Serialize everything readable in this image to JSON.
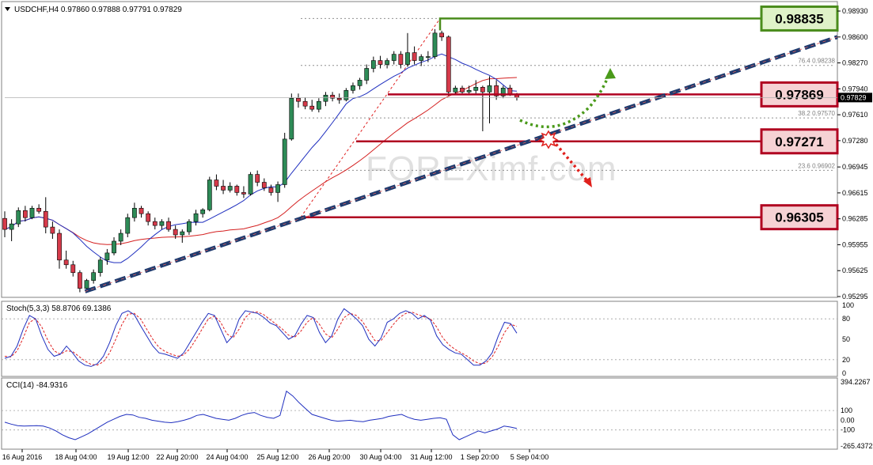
{
  "chart_data": [
    {
      "type": "candlestick",
      "symbol_header": "USDCHF,H4  0.97860 0.97888 0.97791 0.97829",
      "ylim": [
        0.95295,
        0.9893
      ],
      "y_ticks": [
        "0.98930",
        "0.98600",
        "0.98270",
        "0.97940",
        "0.97610",
        "0.97280",
        "0.96945",
        "0.96615",
        "0.96285",
        "0.95955",
        "0.95625",
        "0.95295"
      ],
      "x_ticks": [
        "16 Aug 2016",
        "18 Aug 04:00",
        "19 Aug 12:00",
        "22 Aug 20:00",
        "24 Aug 04:00",
        "25 Aug 12:00",
        "26 Aug 20:00",
        "30 Aug 04:00",
        "31 Aug 12:00",
        "1 Sep 20:00",
        "5 Sep 04:00"
      ],
      "candles": [
        [
          0.9629,
          0.9638,
          0.9605,
          0.9615
        ],
        [
          0.9615,
          0.9628,
          0.96,
          0.9622
        ],
        [
          0.9622,
          0.9643,
          0.9618,
          0.9639
        ],
        [
          0.9639,
          0.9645,
          0.9625,
          0.963
        ],
        [
          0.963,
          0.9645,
          0.9628,
          0.9642
        ],
        [
          0.9642,
          0.9647,
          0.9635,
          0.9638
        ],
        [
          0.9638,
          0.9656,
          0.961,
          0.9618
        ],
        [
          0.9618,
          0.9625,
          0.9603,
          0.961
        ],
        [
          0.961,
          0.9615,
          0.9565,
          0.9576
        ],
        [
          0.9576,
          0.9588,
          0.9565,
          0.957
        ],
        [
          0.957,
          0.9575,
          0.9555,
          0.956
        ],
        [
          0.956,
          0.9563,
          0.9535,
          0.954
        ],
        [
          0.954,
          0.9552,
          0.9538,
          0.955
        ],
        [
          0.955,
          0.9564,
          0.9546,
          0.956
        ],
        [
          0.956,
          0.958,
          0.9555,
          0.9576
        ],
        [
          0.9576,
          0.959,
          0.957,
          0.9585
        ],
        [
          0.9585,
          0.9605,
          0.9582,
          0.96
        ],
        [
          0.96,
          0.9615,
          0.9595,
          0.961
        ],
        [
          0.961,
          0.9635,
          0.9605,
          0.963
        ],
        [
          0.963,
          0.9649,
          0.9625,
          0.9642
        ],
        [
          0.9642,
          0.9645,
          0.963,
          0.9635
        ],
        [
          0.9635,
          0.9638,
          0.962,
          0.9625
        ],
        [
          0.9625,
          0.963,
          0.9615,
          0.962
        ],
        [
          0.962,
          0.9628,
          0.9615,
          0.9625
        ],
        [
          0.9625,
          0.963,
          0.9612,
          0.9615
        ],
        [
          0.9615,
          0.962,
          0.9603,
          0.9608
        ],
        [
          0.9608,
          0.9615,
          0.9598,
          0.9612
        ],
        [
          0.9612,
          0.9628,
          0.9608,
          0.9625
        ],
        [
          0.9625,
          0.964,
          0.962,
          0.9635
        ],
        [
          0.9635,
          0.9642,
          0.963,
          0.964
        ],
        [
          0.964,
          0.9682,
          0.9638,
          0.9678
        ],
        [
          0.9678,
          0.9685,
          0.9665,
          0.967
        ],
        [
          0.967,
          0.9678,
          0.966,
          0.9665
        ],
        [
          0.9665,
          0.9675,
          0.9662,
          0.967
        ],
        [
          0.967,
          0.9672,
          0.9658,
          0.9662
        ],
        [
          0.9662,
          0.967,
          0.9655,
          0.966
        ],
        [
          0.966,
          0.9688,
          0.9658,
          0.9685
        ],
        [
          0.9685,
          0.969,
          0.967,
          0.9675
        ],
        [
          0.9675,
          0.968,
          0.9664,
          0.9668
        ],
        [
          0.9668,
          0.9672,
          0.9658,
          0.9662
        ],
        [
          0.9662,
          0.9676,
          0.965,
          0.9672
        ],
        [
          0.9672,
          0.9738,
          0.9668,
          0.973
        ],
        [
          0.973,
          0.9788,
          0.9728,
          0.9782
        ],
        [
          0.9782,
          0.9788,
          0.977,
          0.9778
        ],
        [
          0.9778,
          0.9783,
          0.9768,
          0.9772
        ],
        [
          0.9772,
          0.978,
          0.9765,
          0.9768
        ],
        [
          0.9768,
          0.9782,
          0.9764,
          0.9778
        ],
        [
          0.9778,
          0.979,
          0.9772,
          0.9786
        ],
        [
          0.9786,
          0.979,
          0.9778,
          0.9782
        ],
        [
          0.9782,
          0.9788,
          0.9775,
          0.978
        ],
        [
          0.978,
          0.9795,
          0.9778,
          0.9792
        ],
        [
          0.9792,
          0.9802,
          0.9788,
          0.9798
        ],
        [
          0.9798,
          0.9808,
          0.9793,
          0.9805
        ],
        [
          0.9805,
          0.9825,
          0.98,
          0.982
        ],
        [
          0.982,
          0.9835,
          0.9815,
          0.983
        ],
        [
          0.983,
          0.9836,
          0.982,
          0.9825
        ],
        [
          0.9825,
          0.9833,
          0.982,
          0.983
        ],
        [
          0.983,
          0.9842,
          0.9825,
          0.9838
        ],
        [
          0.9838,
          0.9842,
          0.982,
          0.9825
        ],
        [
          0.9825,
          0.9865,
          0.9822,
          0.984
        ],
        [
          0.984,
          0.9848,
          0.9825,
          0.983
        ],
        [
          0.983,
          0.9838,
          0.9823,
          0.9835
        ],
        [
          0.9835,
          0.9842,
          0.9828,
          0.9835
        ],
        [
          0.9835,
          0.987,
          0.9832,
          0.9865
        ],
        [
          0.9865,
          0.9868,
          0.9855,
          0.986
        ],
        [
          0.986,
          0.9862,
          0.9785,
          0.979
        ],
        [
          0.979,
          0.9798,
          0.9786,
          0.9795
        ],
        [
          0.9795,
          0.9798,
          0.9788,
          0.979
        ],
        [
          0.979,
          0.9798,
          0.9787,
          0.9792
        ],
        [
          0.9792,
          0.9805,
          0.9788,
          0.9796
        ],
        [
          0.9796,
          0.9798,
          0.974,
          0.979
        ],
        [
          0.979,
          0.981,
          0.975,
          0.9798
        ],
        [
          0.9798,
          0.9805,
          0.978,
          0.9785
        ],
        [
          0.9785,
          0.9798,
          0.9782,
          0.9795
        ],
        [
          0.9795,
          0.9799,
          0.9785,
          0.9786
        ],
        [
          0.9786,
          0.97888,
          0.97791,
          0.97829
        ]
      ],
      "current_price": "0.97829",
      "fib_levels": [
        {
          "label": "76.4",
          "value": "0.98238"
        },
        {
          "label": "38.2",
          "value": "0.97570"
        },
        {
          "label": "23.6",
          "value": "0.96902"
        }
      ],
      "level_boxes": [
        {
          "value": "0.98835",
          "kind": "resistance",
          "color": "#4a8c1c"
        },
        {
          "value": "0.97869",
          "kind": "level",
          "color": "#b00020"
        },
        {
          "value": "0.97271",
          "kind": "level",
          "color": "#b00020"
        },
        {
          "value": "0.96305",
          "kind": "support",
          "color": "#b00020"
        }
      ],
      "trendline": {
        "from": {
          "index": 12,
          "price": 0.9536
        },
        "to": {
          "index": -1,
          "price": 0.986
        },
        "color": "#1f3b6e"
      },
      "ma_colors": {
        "blue": "#1f2fbf",
        "red": "#d42020"
      },
      "watermark": "FOREXimf.com",
      "colors": {
        "bull": "#2e8b57",
        "bear": "#d63a4a"
      }
    },
    {
      "type": "line",
      "title": "Stoch(5,3,3) 58.8706 69.1386",
      "y_ticks": [
        "100",
        "80",
        "50",
        "20",
        "0"
      ],
      "ylim": [
        0,
        100
      ],
      "series": [
        {
          "values": [
            22,
            25,
            40,
            65,
            85,
            80,
            55,
            35,
            25,
            28,
            40,
            30,
            18,
            12,
            10,
            14,
            25,
            45,
            70,
            88,
            92,
            86,
            70,
            55,
            40,
            30,
            28,
            25,
            22,
            30,
            45,
            60,
            75,
            88,
            85,
            65,
            45,
            55,
            80,
            92,
            90,
            88,
            82,
            74,
            70,
            60,
            50,
            55,
            72,
            85,
            82,
            60,
            45,
            55,
            80,
            95,
            88,
            80,
            70,
            50,
            40,
            52,
            75,
            80,
            88,
            92,
            88,
            80,
            85,
            78,
            55,
            42,
            35,
            30,
            28,
            20,
            12,
            12,
            18,
            30,
            55,
            75,
            73,
            59
          ]
        },
        {
          "values": [
            25,
            24,
            33,
            52,
            75,
            80,
            68,
            48,
            33,
            28,
            33,
            32,
            25,
            18,
            13,
            12,
            17,
            30,
            50,
            72,
            87,
            88,
            80,
            65,
            50,
            38,
            32,
            28,
            25,
            27,
            36,
            50,
            65,
            80,
            84,
            75,
            58,
            52,
            65,
            82,
            90,
            90,
            86,
            79,
            72,
            65,
            56,
            53,
            62,
            75,
            82,
            72,
            58,
            52,
            65,
            82,
            88,
            85,
            76,
            62,
            48,
            48,
            60,
            72,
            82,
            88,
            90,
            86,
            83,
            80,
            68,
            52,
            42,
            35,
            30,
            25,
            18,
            14,
            15,
            24,
            40,
            60,
            72,
            69
          ]
        }
      ]
    },
    {
      "type": "line",
      "title": "CCI(14) -84.9316",
      "y_ticks": [
        "394.2267",
        "100",
        "0.00",
        "-100",
        "-265.4372"
      ],
      "ylim": [
        -265.4372,
        394.2267
      ],
      "series": [
        {
          "values": [
            -20,
            -40,
            -55,
            -60,
            -58,
            -55,
            -60,
            -80,
            -110,
            -150,
            -180,
            -200,
            -170,
            -140,
            -100,
            -60,
            -20,
            10,
            40,
            60,
            55,
            30,
            20,
            0,
            -10,
            -20,
            -25,
            -15,
            0,
            20,
            50,
            60,
            40,
            20,
            10,
            0,
            20,
            50,
            70,
            80,
            50,
            30,
            20,
            50,
            300,
            250,
            180,
            120,
            60,
            40,
            20,
            0,
            -10,
            -5,
            0,
            -10,
            -15,
            0,
            10,
            20,
            40,
            50,
            60,
            30,
            10,
            0,
            10,
            20,
            25,
            10,
            -150,
            -200,
            -170,
            -140,
            -110,
            -130,
            -110,
            -90,
            -60,
            -70,
            -85
          ]
        }
      ]
    }
  ]
}
